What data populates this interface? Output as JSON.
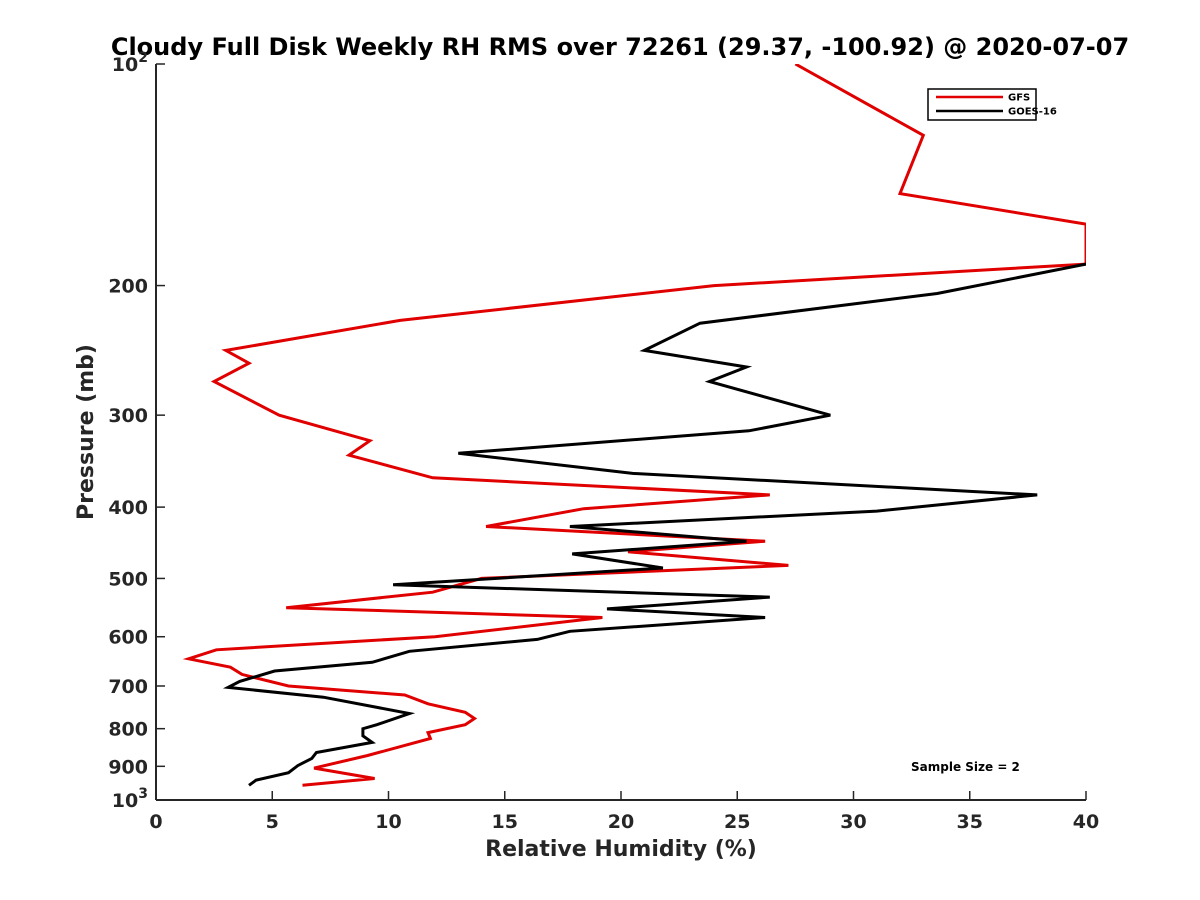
{
  "chart_data": {
    "type": "line",
    "title": "Cloudy Full Disk Weekly RH RMS over 72261 (29.37, -100.92) @ 2020-07-07",
    "xlabel": "Relative Humidity (%)",
    "ylabel": "Pressure (mb)",
    "xlim": [
      0,
      40
    ],
    "ylim": [
      100,
      1000
    ],
    "y_scale": "log",
    "y_reversed": true,
    "grid": false,
    "legend_position": "top-right",
    "x_ticks": [
      "0",
      "5",
      "10",
      "15",
      "20",
      "25",
      "30",
      "35",
      "40"
    ],
    "y_ticks": [
      {
        "value": 100,
        "base": "10",
        "exp": "2"
      },
      {
        "value": 200,
        "label": "200"
      },
      {
        "value": 300,
        "label": "300"
      },
      {
        "value": 400,
        "label": "400"
      },
      {
        "value": 500,
        "label": "500"
      },
      {
        "value": 600,
        "label": "600"
      },
      {
        "value": 700,
        "label": "700"
      },
      {
        "value": 800,
        "label": "800"
      },
      {
        "value": 900,
        "label": "900"
      },
      {
        "value": 1000,
        "base": "10",
        "exp": "3"
      }
    ],
    "series": [
      {
        "name": "GFS",
        "color": "#e00000",
        "points": [
          [
            27.5,
            100
          ],
          [
            33,
            125
          ],
          [
            32,
            150
          ],
          [
            40,
            165
          ],
          [
            40,
            187
          ],
          [
            24,
            200
          ],
          [
            10.5,
            223
          ],
          [
            3,
            245
          ],
          [
            4,
            255
          ],
          [
            2.5,
            270
          ],
          [
            5.3,
            300
          ],
          [
            9.2,
            325
          ],
          [
            8.3,
            340
          ],
          [
            11.9,
            365
          ],
          [
            26.4,
            385
          ],
          [
            18.4,
            402
          ],
          [
            14.2,
            425
          ],
          [
            26.2,
            445
          ],
          [
            20.3,
            460
          ],
          [
            27.2,
            480
          ],
          [
            14,
            500
          ],
          [
            11.9,
            522
          ],
          [
            5.6,
            548
          ],
          [
            19.2,
            565
          ],
          [
            12,
            600
          ],
          [
            2.6,
            625
          ],
          [
            1.4,
            643
          ],
          [
            3.2,
            660
          ],
          [
            3.7,
            675
          ],
          [
            5.7,
            700
          ],
          [
            10.7,
            720
          ],
          [
            11.7,
            740
          ],
          [
            13.3,
            760
          ],
          [
            13.7,
            775
          ],
          [
            13.3,
            790
          ],
          [
            11.7,
            810
          ],
          [
            11.8,
            825
          ],
          [
            9.1,
            870
          ],
          [
            6.8,
            905
          ],
          [
            9.4,
            935
          ],
          [
            6.3,
            955
          ]
        ]
      },
      {
        "name": "GOES-16",
        "color": "#000000",
        "points": [
          [
            40,
            187
          ],
          [
            33.6,
            205
          ],
          [
            23.4,
            225
          ],
          [
            21,
            245
          ],
          [
            25.4,
            258
          ],
          [
            23.8,
            270
          ],
          [
            29,
            300
          ],
          [
            25.5,
            315
          ],
          [
            13,
            338
          ],
          [
            20.5,
            360
          ],
          [
            37.9,
            385
          ],
          [
            31,
            405
          ],
          [
            17.8,
            425
          ],
          [
            25.4,
            445
          ],
          [
            17.9,
            463
          ],
          [
            21.8,
            484
          ],
          [
            10.2,
            510
          ],
          [
            26.4,
            530
          ],
          [
            19.4,
            550
          ],
          [
            26.2,
            565
          ],
          [
            17.8,
            590
          ],
          [
            16.4,
            605
          ],
          [
            10.9,
            628
          ],
          [
            9.3,
            650
          ],
          [
            5.1,
            668
          ],
          [
            3.6,
            690
          ],
          [
            3.1,
            703
          ],
          [
            7.2,
            725
          ],
          [
            10.9,
            763
          ],
          [
            9.5,
            790
          ],
          [
            8.9,
            800
          ],
          [
            8.9,
            818
          ],
          [
            9.3,
            835
          ],
          [
            6.9,
            862
          ],
          [
            6.7,
            878
          ],
          [
            6.1,
            898
          ],
          [
            5.7,
            918
          ],
          [
            4.3,
            940
          ],
          [
            4,
            955
          ]
        ]
      }
    ],
    "annotations": [
      "Sample Size = 2"
    ]
  }
}
